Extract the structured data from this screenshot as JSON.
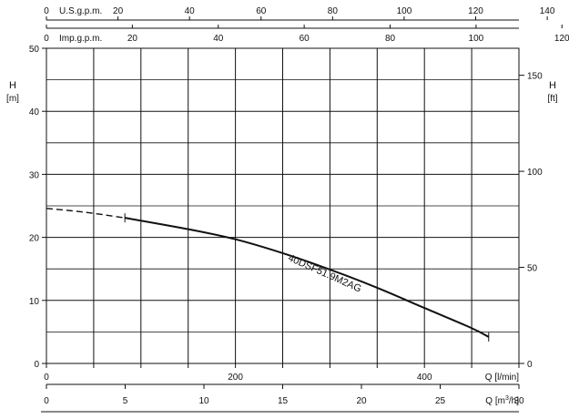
{
  "chart_data": {
    "type": "line",
    "title": "",
    "xlabel": "Q [l/min]",
    "ylabel": "H [m]",
    "y2label": "H [ft]",
    "xlim": [
      0,
      500
    ],
    "ylim": [
      0,
      50
    ],
    "x_ticks": [
      "0",
      "200",
      "400"
    ],
    "y_ticks": [
      "0",
      "10",
      "20",
      "30",
      "40",
      "50"
    ],
    "y2_ticks": [
      "0",
      "50",
      "100",
      "150"
    ],
    "secondary_axes": {
      "m3h": {
        "label": "Q [m³/h]",
        "label_main": "Q [m",
        "label_exp": "3",
        "label_tail": "/h]",
        "ticks": [
          "0",
          "5",
          "10",
          "15",
          "20",
          "25",
          "30"
        ]
      },
      "imp_gpm": {
        "label": "Imp.g.p.m.",
        "ticks": [
          "0",
          "20",
          "40",
          "60",
          "80",
          "100",
          "120"
        ]
      },
      "us_gpm": {
        "label": "U.S.g.p.m.",
        "ticks": [
          "0",
          "20",
          "40",
          "60",
          "80",
          "100",
          "120",
          "140"
        ]
      }
    },
    "grid": true,
    "series": [
      {
        "name": "40DSF51.9M2AG",
        "dashed_segment": {
          "x": [
            0,
            40,
            83
          ],
          "y": [
            24.6,
            24.0,
            23.1
          ]
        },
        "solid_segment": {
          "x": [
            83,
            150,
            200,
            250,
            300,
            350,
            400,
            450,
            468
          ],
          "y": [
            23.1,
            21.3,
            19.7,
            17.5,
            14.9,
            12.0,
            8.8,
            5.6,
            4.2
          ]
        },
        "markers": [
          {
            "x": 83,
            "y": 23.1
          },
          {
            "x": 468,
            "y": 4.2
          }
        ]
      }
    ]
  }
}
